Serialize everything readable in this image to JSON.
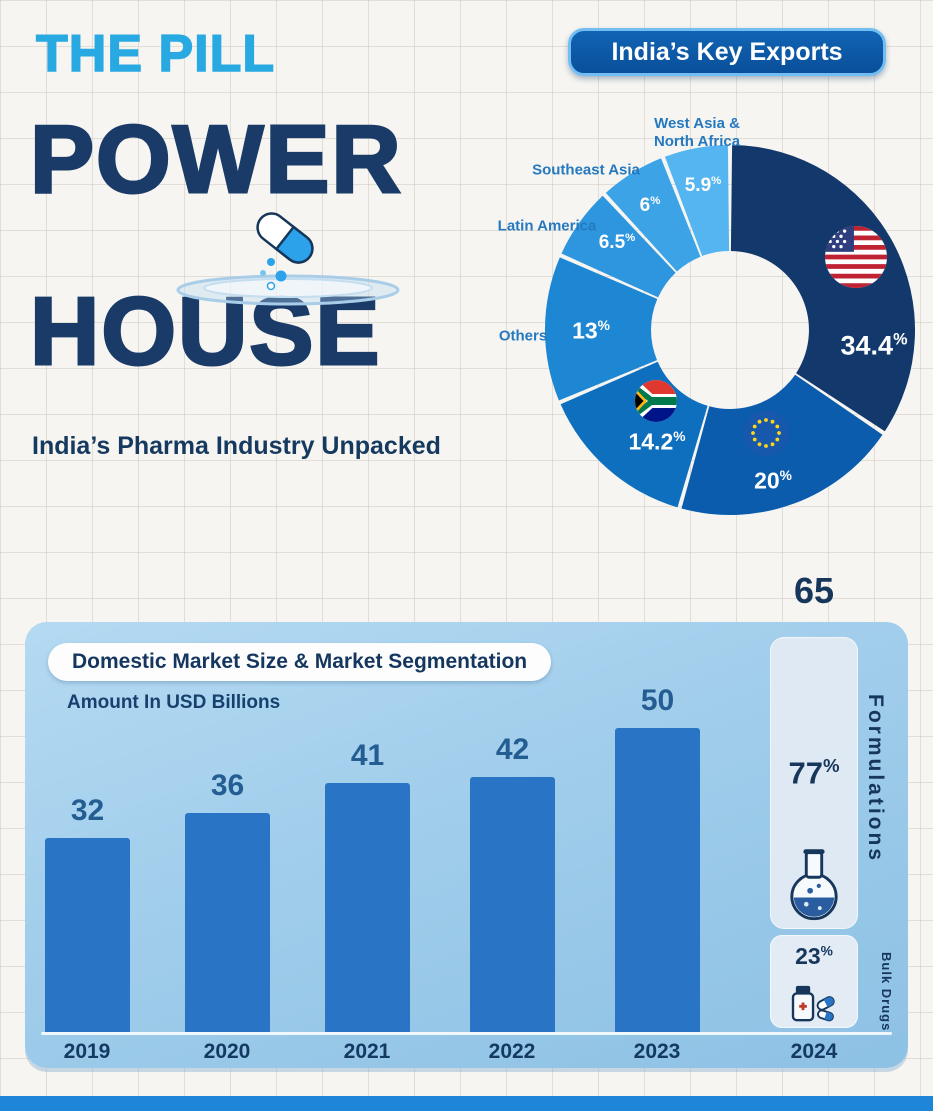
{
  "header": {
    "kicker": "THE PILL",
    "title_line1": "POWER",
    "title_line2": "HOUSE",
    "subtitle": "India’s Pharma Industry Unpacked",
    "art_icon": "pill-capsule-and-dish"
  },
  "exports_badge": "India’s Key Exports",
  "percent_sign": "%",
  "colors": {
    "accent_light_blue": "#29a9e2",
    "navy": "#16365c",
    "panel_blue": "#a0cdeb",
    "bar_blue": "#2a74c6"
  },
  "chart_data": [
    {
      "type": "pie",
      "title": "India’s Key Exports",
      "donut": true,
      "start_angle_deg": 0,
      "direction": "clockwise",
      "unit": "percent",
      "segments": [
        {
          "label": "",
          "flag_icon": "us-flag",
          "value": 34.4,
          "display": "34.4",
          "color": "#13386b"
        },
        {
          "label": "",
          "flag_icon": "eu-flag",
          "value": 20,
          "display": "20",
          "color": "#0b5cad"
        },
        {
          "label": "",
          "flag_icon": "south-africa-flag",
          "value": 14.2,
          "display": "14.2",
          "color": "#0e6fbe"
        },
        {
          "label": "Others",
          "value": 13,
          "display": "13",
          "color": "#1d87d3"
        },
        {
          "label": "Latin America",
          "value": 6.5,
          "display": "6.5",
          "color": "#2d96de"
        },
        {
          "label": "Southeast Asia",
          "value": 6,
          "display": "6",
          "color": "#3da3e7"
        },
        {
          "label": "West Asia & North Africa",
          "value": 5.9,
          "display": "5.9",
          "color": "#55b5f0"
        }
      ]
    },
    {
      "type": "bar",
      "title": "Domestic Market Size & Market Segmentation",
      "subtitle": "Amount In USD Billions",
      "categories": [
        "2019",
        "2020",
        "2021",
        "2022",
        "2023",
        "2024"
      ],
      "values": [
        32,
        36,
        41,
        42,
        50,
        65
      ],
      "bar_color": "#2a74c6",
      "ylim": [
        0,
        65
      ],
      "segmentation_2024": {
        "formulations": {
          "label": "Formulations",
          "value": 77,
          "display": "77",
          "icon": "flask-icon"
        },
        "bulk_drugs": {
          "label": "Bulk Drugs",
          "value": 23,
          "display": "23",
          "icon": "pills-icon"
        }
      }
    }
  ]
}
